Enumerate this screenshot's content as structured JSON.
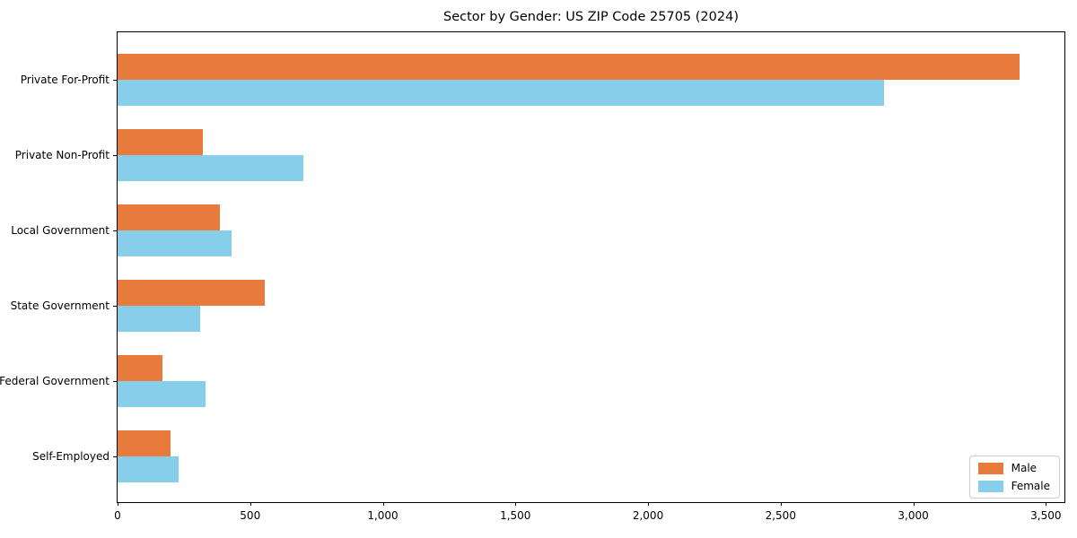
{
  "chart_data": {
    "type": "bar",
    "orientation": "horizontal",
    "title": "Sector by Gender: US ZIP Code 25705 (2024)",
    "categories": [
      "Private For-Profit",
      "Private Non-Profit",
      "Local Government",
      "State Government",
      "Federal Government",
      "Self-Employed"
    ],
    "series": [
      {
        "name": "Male",
        "color": "#E87A3C",
        "values": [
          3400,
          320,
          385,
          555,
          170,
          200
        ]
      },
      {
        "name": "Female",
        "color": "#87CEEB",
        "values": [
          2890,
          700,
          430,
          310,
          330,
          230
        ]
      }
    ],
    "xlabel": "",
    "ylabel": "",
    "xlim": [
      0,
      3570
    ],
    "xticks": [
      0,
      500,
      1000,
      1500,
      2000,
      2500,
      3000,
      3500
    ],
    "xtick_labels": [
      "0",
      "500",
      "1,000",
      "1,500",
      "2,000",
      "2,500",
      "3,000",
      "3,500"
    ],
    "grid": false,
    "legend_position": "lower right",
    "spine_color": "#000000"
  }
}
